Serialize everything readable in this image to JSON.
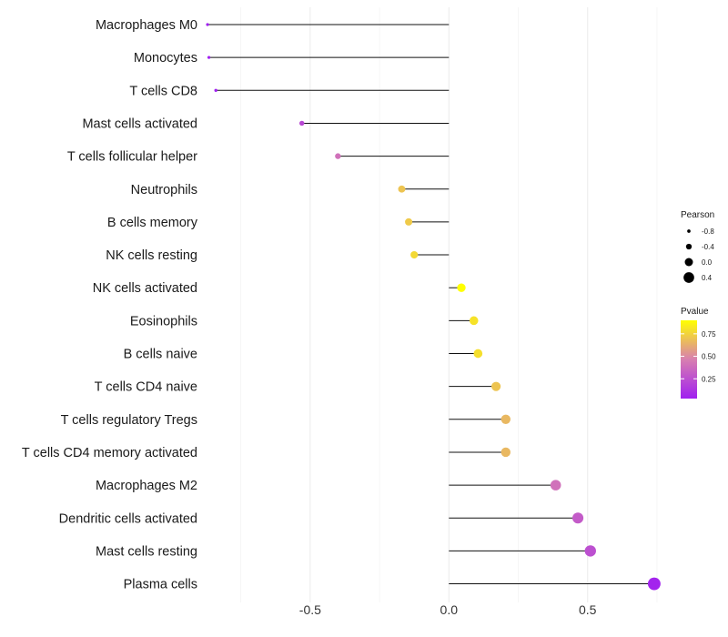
{
  "chart_data": {
    "type": "lollipop",
    "title": "",
    "xlabel": "",
    "ylabel": "",
    "xlim": [
      -0.88,
      0.76
    ],
    "x_ticks": [
      -0.5,
      0.0,
      0.5
    ],
    "x_tick_labels": [
      "-0.5",
      "0.0",
      "0.5"
    ],
    "grid": true,
    "points": [
      {
        "category": "Macrophages M0",
        "pearson": -0.87,
        "pvalue": 0.02
      },
      {
        "category": "Monocytes",
        "pearson": -0.865,
        "pvalue": 0.02
      },
      {
        "category": "T cells CD8",
        "pearson": -0.84,
        "pvalue": 0.03
      },
      {
        "category": "Mast cells activated",
        "pearson": -0.53,
        "pvalue": 0.22
      },
      {
        "category": "T cells follicular helper",
        "pearson": -0.4,
        "pvalue": 0.4
      },
      {
        "category": "Neutrophils",
        "pearson": -0.17,
        "pvalue": 0.7
      },
      {
        "category": "B cells memory",
        "pearson": -0.145,
        "pvalue": 0.72
      },
      {
        "category": "NK cells resting",
        "pearson": -0.125,
        "pvalue": 0.77
      },
      {
        "category": "NK cells activated",
        "pearson": 0.045,
        "pvalue": 0.9
      },
      {
        "category": "Eosinophils",
        "pearson": 0.09,
        "pvalue": 0.8
      },
      {
        "category": "B cells naive",
        "pearson": 0.105,
        "pvalue": 0.79
      },
      {
        "category": "T cells CD4 naive",
        "pearson": 0.17,
        "pvalue": 0.7
      },
      {
        "category": "T cells regulatory  Tregs ",
        "pearson": 0.205,
        "pvalue": 0.66
      },
      {
        "category": "T cells CD4 memory activated",
        "pearson": 0.205,
        "pvalue": 0.66
      },
      {
        "category": "Macrophages M2",
        "pearson": 0.385,
        "pvalue": 0.4
      },
      {
        "category": "Dendritic cells activated",
        "pearson": 0.465,
        "pvalue": 0.3
      },
      {
        "category": "Mast cells resting",
        "pearson": 0.51,
        "pvalue": 0.25
      },
      {
        "category": "Plasma cells",
        "pearson": 0.74,
        "pvalue": 0.05
      }
    ],
    "legend": {
      "placement": "right",
      "size": {
        "title": "Pearson",
        "breaks": [
          -0.8,
          -0.4,
          0.0,
          0.4
        ],
        "labels": [
          "-0.8",
          "-0.4",
          "0.0",
          "0.4"
        ]
      },
      "color": {
        "title": "Pvalue",
        "range": [
          0.03,
          0.9
        ],
        "breaks": [
          0.25,
          0.5,
          0.75
        ],
        "labels": [
          "0.25",
          "0.50",
          "0.75"
        ],
        "low_color": "#A020F0",
        "mid_color": "#D87FB0",
        "high_color": "#FFFF00"
      }
    }
  }
}
